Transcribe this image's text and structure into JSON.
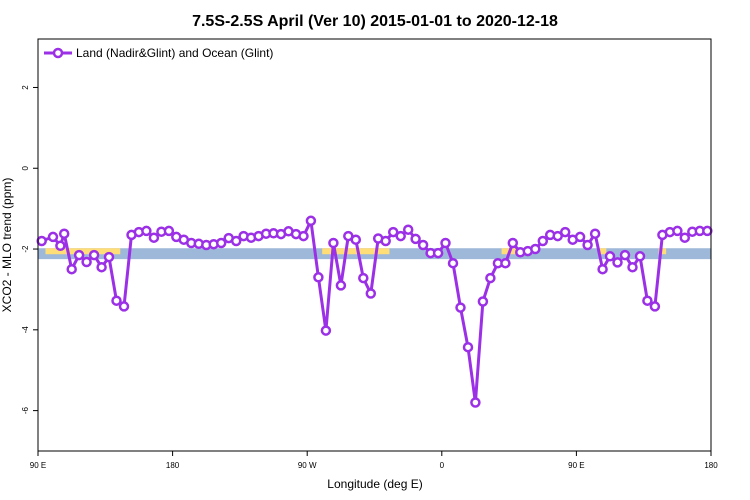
{
  "chart_data": {
    "type": "line",
    "title": "7.5S-2.5S April (Ver 10)   2015-01-01 to 2020-12-18",
    "xlabel": "Longitude (deg E)",
    "ylabel": "XCO2 - MLO trend (ppm)",
    "xlim": [
      0,
      450
    ],
    "ylim": [
      -7,
      3.2
    ],
    "x_ticks": [
      {
        "value": 0,
        "label": "90 E"
      },
      {
        "value": 90,
        "label": "180"
      },
      {
        "value": 180,
        "label": "90 W"
      },
      {
        "value": 270,
        "label": "0"
      },
      {
        "value": 360,
        "label": "90 E"
      },
      {
        "value": 450,
        "label": "180"
      }
    ],
    "y_ticks": [
      {
        "value": 2,
        "label": "2"
      },
      {
        "value": 0,
        "label": "0"
      },
      {
        "value": -2,
        "label": "-2"
      },
      {
        "value": -4,
        "label": "-4"
      },
      {
        "value": -6,
        "label": "-6"
      }
    ],
    "legend": {
      "position": "top-left"
    },
    "surface_band": {
      "y_range": [
        -2.25,
        -1.98
      ],
      "land_color": "#ffdd77",
      "ocean_color": "#9db8d9",
      "land_segments_x": [
        [
          5,
          55
        ],
        [
          190,
          235
        ],
        [
          310,
          325
        ],
        [
          375,
          380
        ],
        [
          415,
          420
        ]
      ]
    },
    "series": [
      {
        "name": "Land (Nadir&Glint) and Ocean (Glint)",
        "color": "#9b30e6",
        "x": [
          2.5,
          10,
          15,
          17.5,
          22.5,
          27.5,
          32.5,
          37.5,
          42.5,
          47.5,
          52.5,
          57.5,
          62.5,
          67.5,
          72.5,
          77.5,
          82.5,
          87.5,
          92.5,
          97.5,
          102.5,
          107.5,
          112.5,
          117.5,
          122.5,
          127.5,
          132.5,
          137.5,
          142.5,
          147.5,
          152.5,
          157.5,
          162.5,
          167.5,
          172.5,
          177.5,
          182.5,
          187.5,
          192.5,
          197.5,
          202.5,
          207.5,
          212.5,
          217.5,
          222.5,
          227.5,
          232.5,
          237.5,
          242.5,
          247.5,
          252.5,
          257.5,
          262.5,
          267.5,
          272.5,
          277.5,
          282.5,
          287.5,
          292.5,
          297.5,
          302.5,
          307.5,
          312.5,
          317.5,
          322.5,
          327.5,
          332.5,
          337.5,
          342.5,
          347.5,
          352.5,
          357.5,
          362.5,
          367.5,
          372.5,
          377.5,
          382.5,
          387.5,
          392.5,
          397.5,
          402.5,
          407.5,
          412.5,
          417.5,
          422.5,
          427.5,
          432.5,
          437.5,
          442.5,
          447.5
        ],
        "values": [
          -1.8,
          -1.7,
          -1.92,
          -1.62,
          -2.5,
          -2.15,
          -2.32,
          -2.15,
          -2.45,
          -2.2,
          -3.28,
          -3.42,
          -1.65,
          -1.58,
          -1.55,
          -1.72,
          -1.57,
          -1.55,
          -1.7,
          -1.77,
          -1.85,
          -1.87,
          -1.9,
          -1.88,
          -1.85,
          -1.73,
          -1.8,
          -1.68,
          -1.72,
          -1.68,
          -1.62,
          -1.61,
          -1.63,
          -1.56,
          -1.63,
          -1.68,
          -1.3,
          -2.7,
          -4.02,
          -1.85,
          -2.9,
          -1.68,
          -1.77,
          -2.72,
          -3.1,
          -1.74,
          -1.8,
          -1.58,
          -1.68,
          -1.52,
          -1.75,
          -1.9,
          -2.1,
          -2.1,
          -1.85,
          -2.35,
          -3.45,
          -4.43,
          -5.8,
          -3.3,
          -2.72,
          -2.35,
          -2.35,
          -1.85,
          -2.08,
          -2.05,
          -2.0,
          -1.8,
          -1.65,
          -1.68,
          -1.58,
          -1.77,
          -1.7,
          -1.9,
          -1.62,
          -2.5,
          -2.18,
          -2.33,
          -2.15,
          -2.45,
          -2.18,
          -3.28,
          -3.42,
          -1.65,
          -1.58,
          -1.55,
          -1.72,
          -1.57,
          -1.55,
          -1.55
        ]
      }
    ]
  }
}
